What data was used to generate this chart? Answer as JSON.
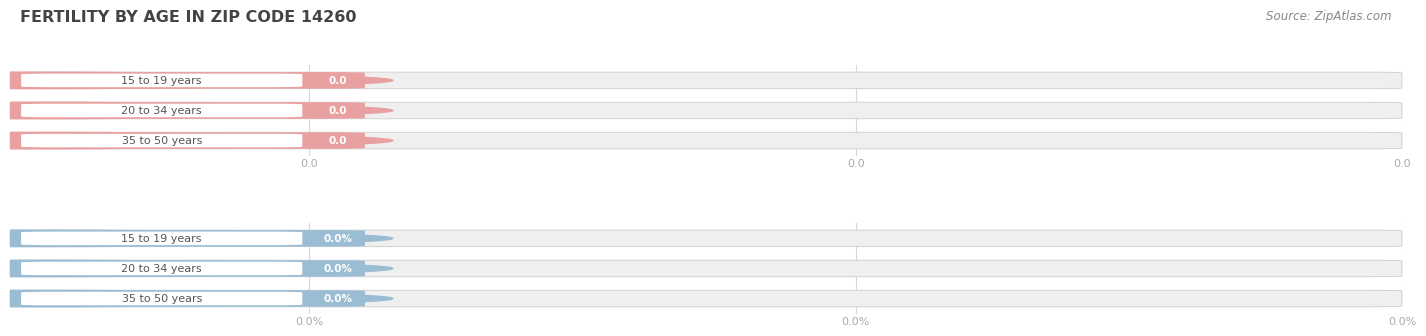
{
  "title": "FERTILITY BY AGE IN ZIP CODE 14260",
  "source": "Source: ZipAtlas.com",
  "top_chart": {
    "categories": [
      "15 to 19 years",
      "20 to 34 years",
      "35 to 50 years"
    ],
    "values": [
      0.0,
      0.0,
      0.0
    ],
    "bar_color": "#e8a0a0",
    "bar_bg_color": "#efefef",
    "xtick_labels": [
      "0.0",
      "0.0",
      "0.0"
    ]
  },
  "bottom_chart": {
    "categories": [
      "15 to 19 years",
      "20 to 34 years",
      "35 to 50 years"
    ],
    "values": [
      0.0,
      0.0,
      0.0
    ],
    "bar_color": "#9bbdd4",
    "bar_bg_color": "#efefef",
    "xtick_labels": [
      "0.0%",
      "0.0%",
      "0.0%"
    ]
  },
  "bg_color": "#ffffff",
  "title_color": "#444444",
  "source_color": "#888888",
  "label_color": "#555555",
  "tick_color": "#aaaaaa",
  "grid_color": "#d8d8d8"
}
